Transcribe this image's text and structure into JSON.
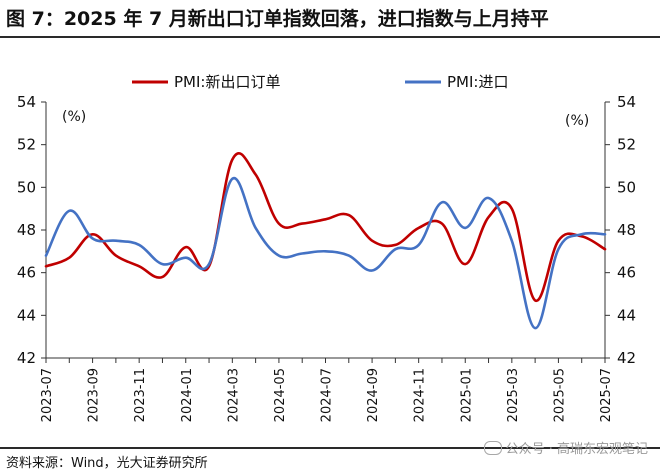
{
  "figure": {
    "title": "图 7：2025 年 7 月新出口订单指数回落，进口指数与上月持平",
    "source": "资料来源：Wind，光大证券研究所",
    "watermark": "公众号 · 高瑞东宏观笔记"
  },
  "chart_data": {
    "type": "line",
    "y_unit_left": "(%)",
    "y_unit_right": "(%)",
    "ylim": [
      42,
      54
    ],
    "yticks": [
      42,
      44,
      46,
      48,
      50,
      52,
      54
    ],
    "x": [
      "2023-07",
      "2023-08",
      "2023-09",
      "2023-10",
      "2023-11",
      "2023-12",
      "2024-01",
      "2024-02",
      "2024-03",
      "2024-04",
      "2024-05",
      "2024-06",
      "2024-07",
      "2024-08",
      "2024-09",
      "2024-10",
      "2024-11",
      "2024-12",
      "2025-01",
      "2025-02",
      "2025-03",
      "2025-04",
      "2025-05",
      "2025-06",
      "2025-07"
    ],
    "xtick_labels": [
      "2023-07",
      "2023-09",
      "2023-11",
      "2024-01",
      "2024-03",
      "2024-05",
      "2024-07",
      "2024-09",
      "2024-11",
      "2025-01",
      "2025-03",
      "2025-05",
      "2025-07"
    ],
    "legend_position": "top",
    "grid": false,
    "series": [
      {
        "name": "PMI:新出口订单",
        "color": "#c00000",
        "values": [
          46.3,
          46.7,
          47.8,
          46.8,
          46.3,
          45.8,
          47.2,
          46.3,
          51.3,
          50.6,
          48.3,
          48.3,
          48.5,
          48.7,
          47.5,
          47.3,
          48.1,
          48.3,
          46.4,
          48.6,
          49.0,
          44.7,
          47.5,
          47.7,
          47.1
        ]
      },
      {
        "name": "PMI:进口",
        "color": "#4472c4",
        "values": [
          46.8,
          48.9,
          47.6,
          47.5,
          47.3,
          46.4,
          46.7,
          46.4,
          50.4,
          48.1,
          46.8,
          46.9,
          47.0,
          46.8,
          46.1,
          47.1,
          47.3,
          49.3,
          48.1,
          49.5,
          47.5,
          43.4,
          47.1,
          47.8,
          47.8
        ]
      }
    ]
  }
}
